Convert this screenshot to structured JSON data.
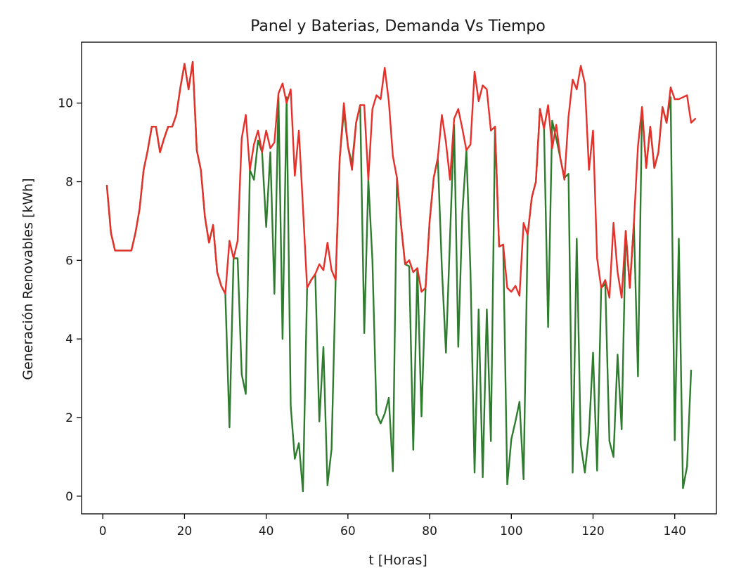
{
  "chart_data": {
    "type": "line",
    "title": "Panel y Baterias, Demanda Vs Tiempo",
    "xlabel": "t [Horas]",
    "ylabel": "Generación Renovables [kWh]",
    "xlim": [
      -5.2,
      150.2
    ],
    "ylim": [
      -0.45,
      11.55
    ],
    "xticks": [
      0,
      20,
      40,
      60,
      80,
      100,
      120,
      140
    ],
    "yticks": [
      0,
      2,
      4,
      6,
      8,
      10
    ],
    "grid": false,
    "legend": "none",
    "series": [
      {
        "color": "#2e7d2e",
        "values": [
          7.9,
          6.7,
          6.25,
          6.25,
          6.25,
          6.25,
          6.25,
          6.7,
          7.3,
          8.3,
          8.8,
          9.4,
          9.4,
          8.75,
          9.1,
          9.4,
          9.4,
          9.7,
          10.4,
          11.0,
          10.35,
          11.05,
          8.8,
          8.3,
          7.1,
          6.45,
          6.9,
          5.7,
          5.35,
          5.15,
          1.75,
          6.05,
          6.05,
          3.1,
          2.6,
          8.3,
          8.05,
          9.05,
          8.75,
          6.85,
          8.75,
          5.15,
          10.15,
          4.0,
          10.15,
          2.3,
          0.95,
          1.35,
          0.12,
          5.3,
          5.5,
          5.65,
          1.9,
          3.8,
          0.28,
          1.2,
          5.5,
          8.6,
          9.8,
          8.9,
          8.45,
          9.5,
          9.95,
          4.15,
          8.05,
          6.0,
          2.1,
          1.85,
          2.1,
          2.5,
          0.63,
          8.1,
          6.9,
          5.9,
          5.85,
          1.18,
          5.8,
          2.03,
          5.3,
          7.0,
          8.1,
          8.6,
          5.8,
          3.65,
          6.6,
          9.45,
          3.8,
          7.2,
          8.8,
          5.7,
          0.6,
          4.75,
          0.48,
          4.75,
          1.4,
          9.4,
          6.35,
          6.4,
          0.3,
          1.45,
          1.9,
          2.4,
          0.43,
          6.65,
          7.6,
          8.0,
          9.85,
          9.35,
          4.3,
          9.55,
          9.1,
          8.6,
          8.1,
          8.2,
          0.6,
          6.55,
          1.3,
          0.6,
          1.6,
          3.65,
          0.65,
          5.3,
          5.4,
          1.4,
          1.0,
          3.6,
          1.7,
          6.75,
          5.3,
          6.95,
          3.05,
          9.9,
          8.35,
          9.4,
          8.35,
          8.75,
          9.9,
          9.5,
          10.15,
          1.42,
          6.55,
          0.2,
          0.75,
          3.2
        ]
      },
      {
        "color": "#e8302a",
        "values": [
          7.9,
          6.7,
          6.25,
          6.25,
          6.25,
          6.25,
          6.25,
          6.7,
          7.3,
          8.3,
          8.8,
          9.4,
          9.4,
          8.75,
          9.1,
          9.4,
          9.4,
          9.7,
          10.4,
          11.0,
          10.35,
          11.05,
          8.8,
          8.3,
          7.1,
          6.45,
          6.9,
          5.7,
          5.35,
          5.15,
          6.5,
          6.05,
          6.5,
          9.1,
          9.7,
          8.3,
          8.95,
          9.3,
          8.75,
          9.3,
          8.85,
          9.0,
          10.25,
          10.5,
          10.0,
          10.35,
          8.15,
          9.3,
          7.35,
          5.3,
          5.5,
          5.65,
          5.9,
          5.75,
          6.45,
          5.75,
          5.5,
          8.6,
          10.0,
          8.9,
          8.3,
          9.5,
          9.95,
          9.95,
          8.05,
          9.85,
          10.2,
          10.1,
          10.9,
          10.05,
          8.65,
          8.1,
          6.9,
          5.9,
          6.0,
          5.7,
          5.8,
          5.2,
          5.3,
          7.0,
          8.1,
          8.6,
          9.7,
          9.0,
          8.05,
          9.6,
          9.85,
          9.35,
          8.8,
          8.95,
          10.8,
          10.05,
          10.45,
          10.35,
          9.3,
          9.4,
          6.35,
          6.4,
          5.3,
          5.2,
          5.35,
          5.1,
          6.95,
          6.65,
          7.6,
          8.0,
          9.85,
          9.35,
          9.95,
          8.85,
          9.45,
          8.6,
          8.05,
          9.65,
          10.6,
          10.35,
          10.95,
          10.5,
          8.3,
          9.3,
          6.05,
          5.3,
          5.5,
          5.05,
          6.95,
          5.7,
          5.05,
          6.75,
          5.3,
          6.95,
          8.9,
          9.9,
          8.35,
          9.4,
          8.35,
          8.75,
          9.9,
          9.5,
          10.4,
          10.1,
          10.1,
          10.15,
          10.2,
          9.5,
          9.6
        ]
      }
    ]
  }
}
